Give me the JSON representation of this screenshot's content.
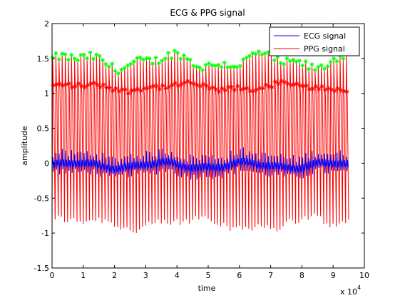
{
  "chart_data": {
    "type": "line",
    "title": "ECG & PPG signal",
    "xlabel": "time",
    "ylabel": "amplitude",
    "x_exponent_label": "x 10",
    "x_exponent_power": "4",
    "xlim": [
      0,
      100000
    ],
    "ylim": [
      -1.5,
      2
    ],
    "x_tick_labels": [
      "0",
      "1",
      "2",
      "3",
      "4",
      "5",
      "6",
      "7",
      "8",
      "9",
      "10"
    ],
    "y_tick_labels": [
      "-1.5",
      "-1",
      "-0.5",
      "0",
      "0.5",
      "1",
      "1.5",
      "2"
    ],
    "x_ticks": [
      0,
      10000,
      20000,
      30000,
      40000,
      50000,
      60000,
      70000,
      80000,
      90000,
      100000
    ],
    "y_ticks": [
      -1.5,
      -1,
      -0.5,
      0,
      0.5,
      1,
      1.5,
      2
    ],
    "legend_placement": "top-right",
    "grid": false,
    "beat_period": 1000,
    "signal_end": 95000,
    "series": [
      {
        "name": "ECG signal",
        "color": "#0000ff",
        "description_values": {
          "baseline_range": [
            -0.15,
            0.1
          ],
          "peak_range": [
            -0.2,
            0.2
          ]
        }
      },
      {
        "name": "PPG signal",
        "color": "#ff0000",
        "description_values": {
          "peak_range": [
            1.1,
            1.6
          ],
          "trough_range": [
            -1.02,
            -0.7
          ]
        }
      }
    ],
    "markers": [
      {
        "label": "PPG systolic peaks",
        "color": "#00ff00",
        "symbol": "*",
        "y_range": [
          1.35,
          1.7
        ]
      },
      {
        "label": "PPG dicrotic points",
        "color": "#ff0000",
        "symbol": "*",
        "y_range": [
          0.98,
          1.2
        ]
      }
    ]
  }
}
